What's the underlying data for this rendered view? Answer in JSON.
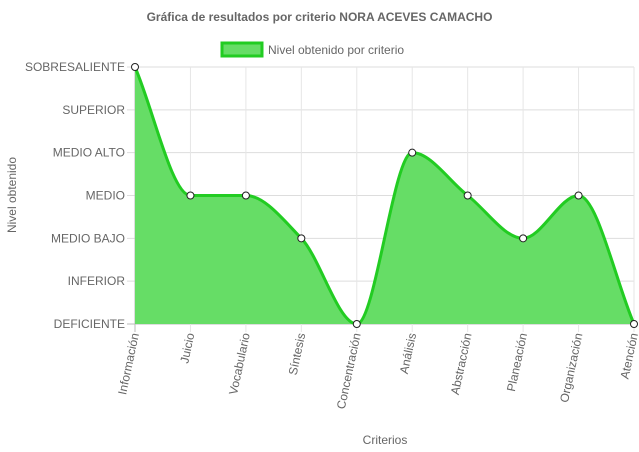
{
  "chart_data": {
    "type": "area",
    "title": "Gráfica de resultados por criterio NORA ACEVES CAMACHO",
    "xlabel": "Criterios",
    "ylabel": "Nivel obtenido",
    "categories": [
      "Información",
      "Juicio",
      "Vocabulario",
      "Síntesis",
      "Concentración",
      "Análisis",
      "Abstracción",
      "Planeación",
      "Organización",
      "Atención"
    ],
    "y_levels": [
      "DEFICIENTE",
      "INFERIOR",
      "MEDIO BAJO",
      "MEDIO",
      "MEDIO ALTO",
      "SUPERIOR",
      "SOBRESALIENTE"
    ],
    "ylim": [
      0,
      6
    ],
    "series": [
      {
        "name": "Nivel obtenido por criterio",
        "values": [
          6,
          3,
          3,
          2,
          0,
          4,
          3,
          2,
          3,
          0
        ],
        "fill_color": "#66dd66",
        "line_color": "#22cc22"
      }
    ],
    "grid": true,
    "legend_position": "top"
  }
}
